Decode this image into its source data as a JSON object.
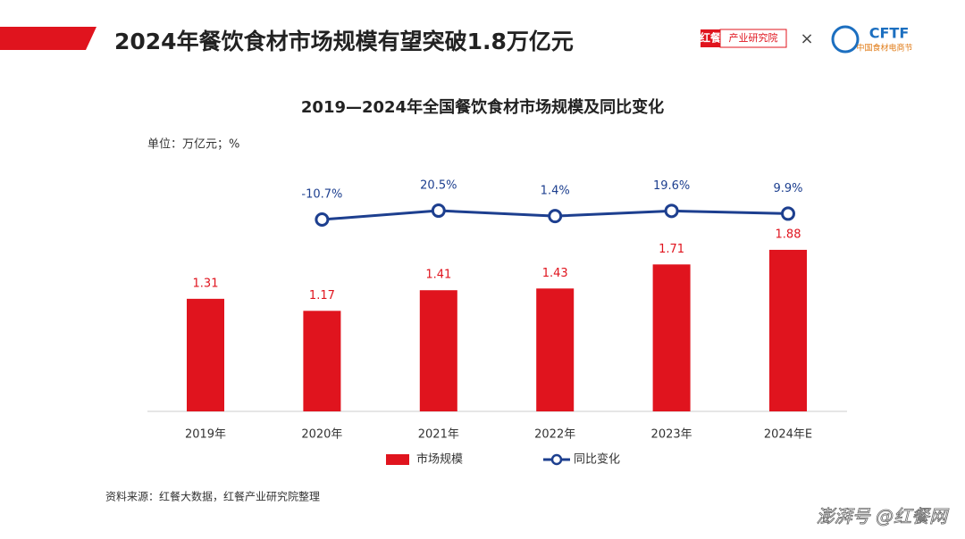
{
  "header": {
    "title": "2024年餐饮食材市场规模有望突破1.8万亿元",
    "logo_left_main": "红餐",
    "logo_left_sub": "产业研究院",
    "times": "×",
    "logo_right_main": "CFTF",
    "logo_right_sub": "中国食材电商节"
  },
  "chart_data": {
    "type": "bar",
    "title": "2019—2024年全国餐饮食材市场规模及同比变化",
    "unit": "单位：万亿元；%",
    "categories": [
      "2019年",
      "2020年",
      "2021年",
      "2022年",
      "2023年",
      "2024年E"
    ],
    "series": [
      {
        "name": "市场规模",
        "type": "bar",
        "color": "#e0141e",
        "values": [
          1.31,
          1.17,
          1.41,
          1.43,
          1.71,
          1.88
        ]
      },
      {
        "name": "同比变化",
        "type": "line",
        "axis": "y2",
        "color": "#1d3f8f",
        "values": [
          null,
          -10.7,
          20.5,
          1.4,
          19.6,
          9.9
        ],
        "value_labels": [
          null,
          "-10.7%",
          "20.5%",
          "1.4%",
          "19.6%",
          "9.9%"
        ]
      }
    ]
  },
  "footer": {
    "source": "资料来源：红餐大数据，红餐产业研究院整理",
    "watermark": "澎湃号 @红餐网"
  }
}
